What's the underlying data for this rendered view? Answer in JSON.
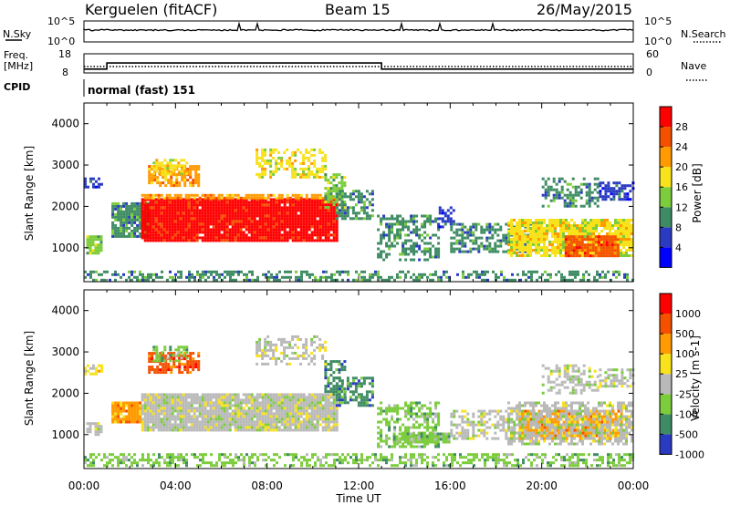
{
  "header": {
    "station": "Kerguelen (fitACF)",
    "beam": "Beam 15",
    "date": "26/May/2015"
  },
  "noise_panel": {
    "left_label": "N.Sky",
    "right_label": "N.Search",
    "left_ticks": [
      "10^5",
      "10^0"
    ],
    "right_ticks": [
      "10^5",
      "10^0"
    ]
  },
  "freq_panel": {
    "left_label_1": "Freq.",
    "left_label_2": "[MHz]",
    "right_label": "Nave",
    "left_ticks": [
      "18",
      "8"
    ],
    "right_ticks": [
      "60",
      "0"
    ],
    "freq_profile": [
      {
        "t": 0,
        "mhz": 10.0
      },
      {
        "t": 1.0,
        "mhz": 10.0
      },
      {
        "t": 1.0,
        "mhz": 13.2
      },
      {
        "t": 13.0,
        "mhz": 13.2
      },
      {
        "t": 13.0,
        "mhz": 10.0
      },
      {
        "t": 24.0,
        "mhz": 10.0
      }
    ],
    "nave_level": 20
  },
  "cpid": {
    "label": "CPID",
    "value": "normal (fast) 151"
  },
  "chart_data": [
    {
      "type": "heatmap",
      "parameter": "power",
      "ylabel": "Slant Range [km]",
      "xlabel": "",
      "xlim": [
        0,
        24
      ],
      "ylim": [
        180,
        4500
      ],
      "yticks": [
        1000,
        2000,
        3000,
        4000
      ],
      "colorbar_label": "Power [dB]",
      "colorbar_ticks": [
        4,
        8,
        12,
        16,
        20,
        24,
        28
      ],
      "colorbar_range": [
        0,
        32
      ],
      "colors": [
        "#0000ff",
        "#2a3bc2",
        "#3f8c64",
        "#7ccc3c",
        "#f7e21b",
        "#ff9a00",
        "#f55000",
        "#ff0000"
      ],
      "regions": [
        {
          "t": [
            0.0,
            0.8
          ],
          "r": [
            2500,
            2700
          ],
          "lvl": 1,
          "dens": 0.7
        },
        {
          "t": [
            0.1,
            0.7
          ],
          "r": [
            900,
            1300
          ],
          "lvl": 3,
          "dens": 0.85
        },
        {
          "t": [
            1.2,
            2.8
          ],
          "r": [
            1300,
            2100
          ],
          "lvl": 2,
          "dens": 0.9
        },
        {
          "t": [
            2.5,
            11.0
          ],
          "r": [
            1200,
            2200
          ],
          "lvl": 7,
          "dens": 0.97
        },
        {
          "t": [
            2.5,
            11.0
          ],
          "r": [
            2200,
            2300
          ],
          "lvl": 5,
          "dens": 0.8
        },
        {
          "t": [
            2.8,
            5.0
          ],
          "r": [
            2500,
            3000
          ],
          "lvl": 5,
          "dens": 0.8
        },
        {
          "t": [
            3.0,
            4.5
          ],
          "r": [
            2800,
            3150
          ],
          "lvl": 4,
          "dens": 0.6
        },
        {
          "t": [
            7.5,
            10.5
          ],
          "r": [
            2700,
            3400
          ],
          "lvl": 4,
          "dens": 0.5
        },
        {
          "t": [
            10.5,
            11.4
          ],
          "r": [
            2000,
            2800
          ],
          "lvl": 3,
          "dens": 0.6
        },
        {
          "t": [
            11.0,
            12.6
          ],
          "r": [
            1700,
            2400
          ],
          "lvl": 2,
          "dens": 0.6
        },
        {
          "t": [
            12.8,
            15.5
          ],
          "r": [
            700,
            1800
          ],
          "lvl": 2,
          "dens": 0.5
        },
        {
          "t": [
            15.5,
            16.2
          ],
          "r": [
            1500,
            2000
          ],
          "lvl": 1,
          "dens": 0.5
        },
        {
          "t": [
            16.0,
            19.5
          ],
          "r": [
            900,
            1600
          ],
          "lvl": 2,
          "dens": 0.55
        },
        {
          "t": [
            18.5,
            24.0
          ],
          "r": [
            800,
            1700
          ],
          "lvl": 4,
          "dens": 0.85
        },
        {
          "t": [
            21.0,
            23.3
          ],
          "r": [
            800,
            1300
          ],
          "lvl": 6,
          "dens": 0.9
        },
        {
          "t": [
            20.0,
            22.5
          ],
          "r": [
            2000,
            2700
          ],
          "lvl": 2,
          "dens": 0.5
        },
        {
          "t": [
            22.5,
            24.0
          ],
          "r": [
            2200,
            2600
          ],
          "lvl": 1,
          "dens": 0.6
        },
        {
          "t": [
            0.0,
            24.0
          ],
          "r": [
            230,
            450
          ],
          "lvl": 2,
          "dens": 0.45
        }
      ]
    },
    {
      "type": "heatmap",
      "parameter": "velocity",
      "ylabel": "Slant Range [km]",
      "xlabel": "Time UT",
      "xlim": [
        0,
        24
      ],
      "xtick_labels": [
        "00:00",
        "04:00",
        "08:00",
        "12:00",
        "16:00",
        "20:00",
        "00:00"
      ],
      "ylim": [
        180,
        4500
      ],
      "yticks": [
        1000,
        2000,
        3000,
        4000
      ],
      "colorbar_label": "Velocity [m s-1]",
      "colorbar_tick_labels": [
        "1000",
        "500",
        "100",
        "25",
        "-25",
        "-100",
        "-500",
        "-1000"
      ],
      "colors": [
        "#2a3bc2",
        "#3f8c64",
        "#7ccc3c",
        "#b9b9b9",
        "#f7e21b",
        "#ff9a00",
        "#f55000",
        "#ff0000"
      ],
      "regions": [
        {
          "t": [
            0.0,
            0.8
          ],
          "r": [
            2500,
            2700
          ],
          "lvl": 4,
          "dens": 0.6
        },
        {
          "t": [
            0.1,
            0.7
          ],
          "r": [
            1000,
            1300
          ],
          "lvl": 3,
          "dens": 0.8
        },
        {
          "t": [
            1.2,
            2.5
          ],
          "r": [
            1300,
            1800
          ],
          "lvl": 5,
          "dens": 0.9
        },
        {
          "t": [
            2.5,
            11.0
          ],
          "r": [
            1100,
            2000
          ],
          "lvl": 3,
          "dens": 0.95
        },
        {
          "t": [
            2.8,
            5.0
          ],
          "r": [
            2500,
            3000
          ],
          "lvl": 6,
          "dens": 0.75
        },
        {
          "t": [
            3.0,
            4.5
          ],
          "r": [
            2800,
            3150
          ],
          "lvl": 2,
          "dens": 0.55
        },
        {
          "t": [
            7.5,
            10.5
          ],
          "r": [
            2700,
            3400
          ],
          "lvl": 3,
          "dens": 0.45
        },
        {
          "t": [
            10.5,
            11.4
          ],
          "r": [
            2000,
            2800
          ],
          "lvl": 1,
          "dens": 0.6
        },
        {
          "t": [
            11.0,
            12.6
          ],
          "r": [
            1700,
            2400
          ],
          "lvl": 1,
          "dens": 0.55
        },
        {
          "t": [
            12.8,
            15.5
          ],
          "r": [
            700,
            1800
          ],
          "lvl": 2,
          "dens": 0.5
        },
        {
          "t": [
            13.5,
            16.0
          ],
          "r": [
            800,
            1050
          ],
          "lvl": 2,
          "dens": 0.9
        },
        {
          "t": [
            16.0,
            19.5
          ],
          "r": [
            900,
            1600
          ],
          "lvl": 3,
          "dens": 0.5
        },
        {
          "t": [
            19.0,
            23.5
          ],
          "r": [
            900,
            1600
          ],
          "lvl": 5,
          "dens": 0.85
        },
        {
          "t": [
            18.5,
            24.0
          ],
          "r": [
            800,
            1800
          ],
          "lvl": 3,
          "dens": 0.6
        },
        {
          "t": [
            20.0,
            22.5
          ],
          "r": [
            2000,
            2700
          ],
          "lvl": 3,
          "dens": 0.45
        },
        {
          "t": [
            22.5,
            24.0
          ],
          "r": [
            2200,
            2600
          ],
          "lvl": 3,
          "dens": 0.55
        },
        {
          "t": [
            0.0,
            24.0
          ],
          "r": [
            230,
            550
          ],
          "lvl": 2,
          "dens": 0.5
        }
      ]
    }
  ]
}
